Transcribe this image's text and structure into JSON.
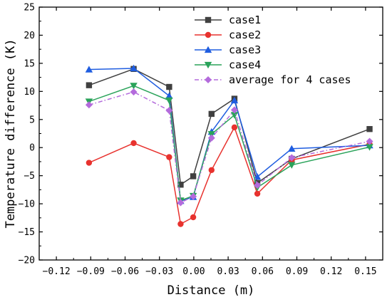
{
  "chart_data": {
    "type": "line",
    "xlabel": "Distance (m)",
    "ylabel": "Temperature difference (K)",
    "xlim": [
      -0.135,
      0.165
    ],
    "ylim": [
      -20,
      25
    ],
    "xticks": [
      -0.12,
      -0.09,
      -0.06,
      -0.03,
      0.0,
      0.03,
      0.06,
      0.09,
      0.12,
      0.15
    ],
    "xtick_labels": [
      "−0.12",
      "−0.09",
      "−0.06",
      "−0.03",
      "0.00",
      "0.03",
      "0.06",
      "0.09",
      "0.12",
      "0.15"
    ],
    "yticks": [
      -20,
      -15,
      -10,
      -5,
      0,
      5,
      10,
      15,
      20,
      25
    ],
    "ytick_labels": [
      "−20",
      "−15",
      "−10",
      "−5",
      "0",
      "5",
      "10",
      "15",
      "20",
      "25"
    ],
    "grid": false,
    "legend_position": "top-right",
    "x": [
      -0.0915,
      -0.0525,
      -0.0215,
      -0.0115,
      -0.0005,
      0.0155,
      0.0355,
      0.0555,
      0.0855,
      0.1535
    ],
    "series": [
      {
        "name": "case1",
        "color": "#404040",
        "marker": "square",
        "dash": "solid",
        "values": [
          11.1,
          14.0,
          10.8,
          -6.6,
          -5.1,
          6.0,
          8.7,
          -6.3,
          -2.0,
          3.3
        ]
      },
      {
        "name": "case2",
        "color": "#e8322e",
        "marker": "circle",
        "dash": "solid",
        "values": [
          -2.7,
          0.8,
          -1.7,
          -13.6,
          -12.4,
          -4.0,
          3.6,
          -8.2,
          -2.2,
          0.6
        ]
      },
      {
        "name": "case3",
        "color": "#1f5de0",
        "marker": "triangle-up",
        "dash": "solid",
        "values": [
          13.9,
          14.1,
          9.2,
          -9.5,
          -8.8,
          2.8,
          8.4,
          -5.2,
          -0.2,
          0.4
        ]
      },
      {
        "name": "case4",
        "color": "#2aa35a",
        "marker": "triangle-down",
        "dash": "solid",
        "values": [
          8.2,
          11.0,
          8.4,
          -9.4,
          -8.6,
          2.4,
          5.8,
          -7.1,
          -3.1,
          0.1
        ]
      },
      {
        "name": "average for 4 cases",
        "color": "#b46bdc",
        "marker": "diamond",
        "dash": "dashdot",
        "values": [
          7.6,
          9.9,
          6.6,
          -9.8,
          -8.7,
          1.7,
          6.7,
          -6.7,
          -1.8,
          1.1
        ]
      }
    ]
  }
}
